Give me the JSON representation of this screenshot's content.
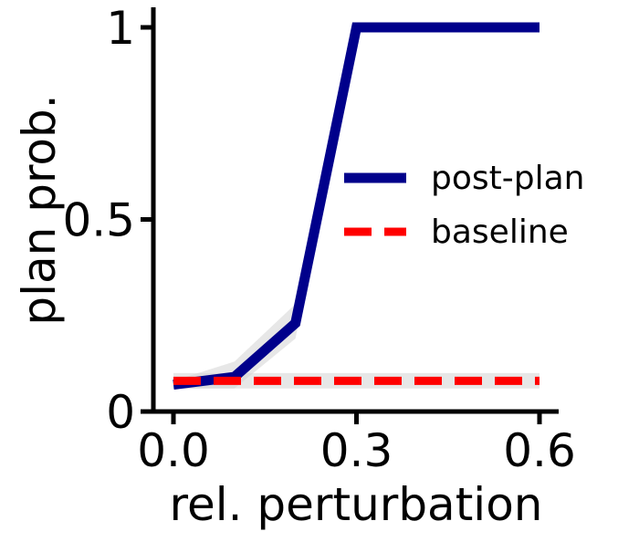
{
  "chart_data": {
    "type": "line",
    "title": "",
    "xlabel": "rel. perturbation",
    "ylabel": "plan prob.",
    "x": [
      0.0,
      0.1,
      0.2,
      0.3,
      0.4,
      0.5,
      0.6
    ],
    "xlim": [
      -0.015,
      0.63
    ],
    "ylim": [
      0,
      1.05
    ],
    "x_ticks": [
      0.0,
      0.3,
      0.6
    ],
    "x_tick_labels": [
      "0.0",
      "0.3",
      "0.6"
    ],
    "y_ticks": [
      0,
      0.5,
      1
    ],
    "y_tick_labels": [
      "0",
      "0.5",
      "1"
    ],
    "grid": false,
    "legend_position": "right",
    "series": [
      {
        "name": "post-plan",
        "color": "#00008b",
        "style": "solid",
        "values": [
          0.07,
          0.09,
          0.23,
          1.0,
          1.0,
          1.0,
          1.0
        ],
        "lower": [
          0.06,
          0.06,
          0.19,
          1.0,
          1.0,
          1.0,
          1.0
        ],
        "upper": [
          0.08,
          0.13,
          0.28,
          1.0,
          1.0,
          1.0,
          1.0
        ]
      },
      {
        "name": "baseline",
        "color": "#ff0000",
        "style": "dashed",
        "values": [
          0.08,
          0.08,
          0.08,
          0.08,
          0.08,
          0.08,
          0.08
        ],
        "lower": [
          0.06,
          0.06,
          0.06,
          0.06,
          0.06,
          0.06,
          0.06
        ],
        "upper": [
          0.1,
          0.1,
          0.1,
          0.1,
          0.1,
          0.1,
          0.1
        ]
      }
    ],
    "band_color": "#d3d3d3"
  }
}
